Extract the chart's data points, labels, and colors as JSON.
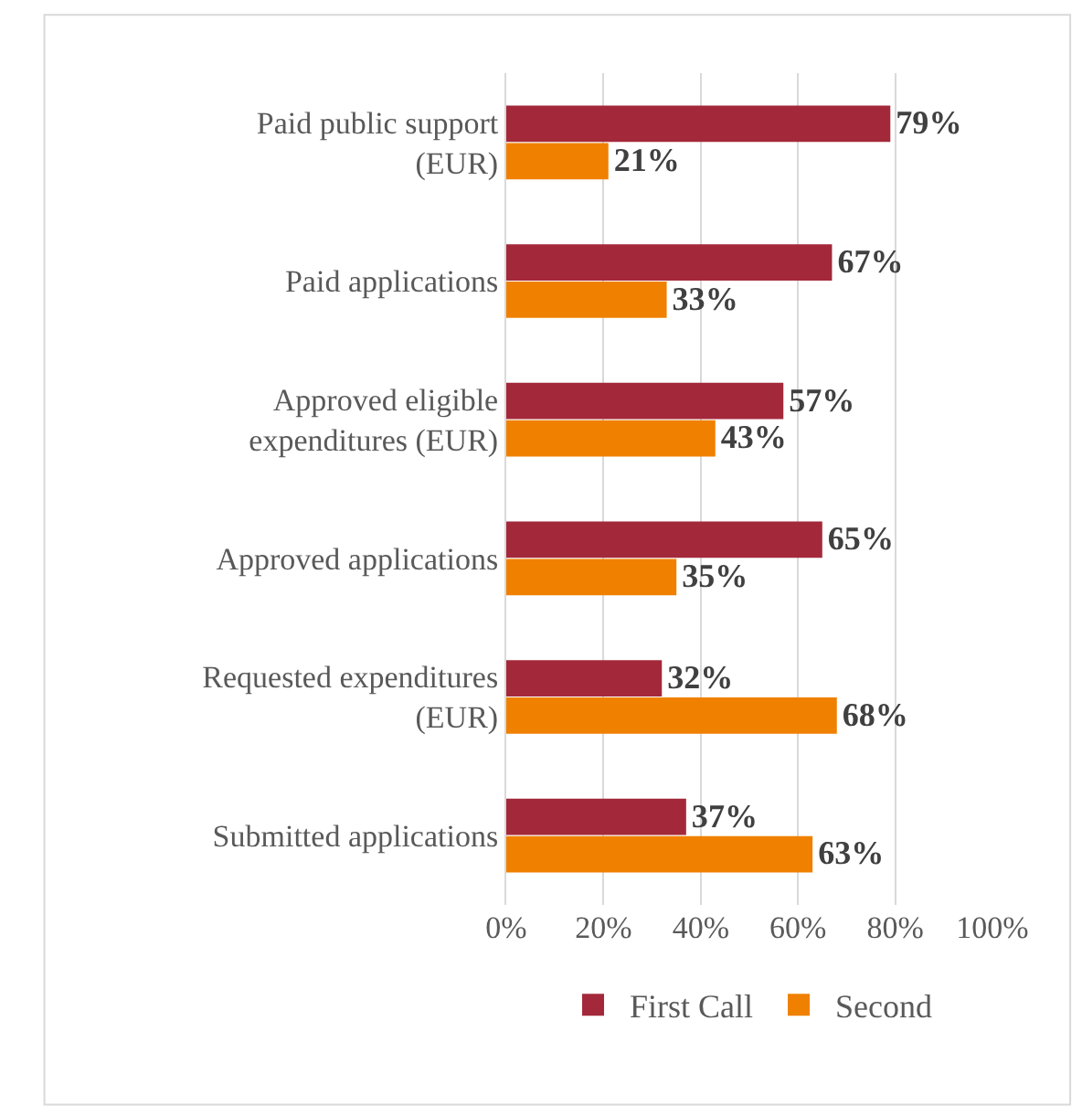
{
  "chart_data": {
    "type": "bar",
    "orientation": "horizontal",
    "categories": [
      "Paid public support\n(EUR)",
      "Paid applications",
      "Approved eligible\nexpenditures (EUR)",
      "Approved applications",
      "Requested expenditures\n(EUR)",
      "Submitted applications"
    ],
    "series": [
      {
        "name": "First Call",
        "color": "#a3293a",
        "values": [
          79,
          67,
          57,
          65,
          32,
          37
        ],
        "value_labels": [
          "79%",
          "67%",
          "57%",
          "65%",
          "32%",
          "37%"
        ]
      },
      {
        "name": "Second",
        "color": "#f08000",
        "values": [
          21,
          33,
          43,
          35,
          68,
          63
        ],
        "value_labels": [
          "21%",
          "33%",
          "43%",
          "35%",
          "68%",
          "63%"
        ]
      }
    ],
    "xlim": [
      0,
      100
    ],
    "xticks": [
      {
        "value": 0,
        "label": "0%"
      },
      {
        "value": 20,
        "label": "20%"
      },
      {
        "value": 40,
        "label": "40%"
      },
      {
        "value": 60,
        "label": "60%"
      },
      {
        "value": 80,
        "label": "80%"
      },
      {
        "value": 100,
        "label": "100%"
      }
    ],
    "grid": "x",
    "legend": "bottom"
  }
}
